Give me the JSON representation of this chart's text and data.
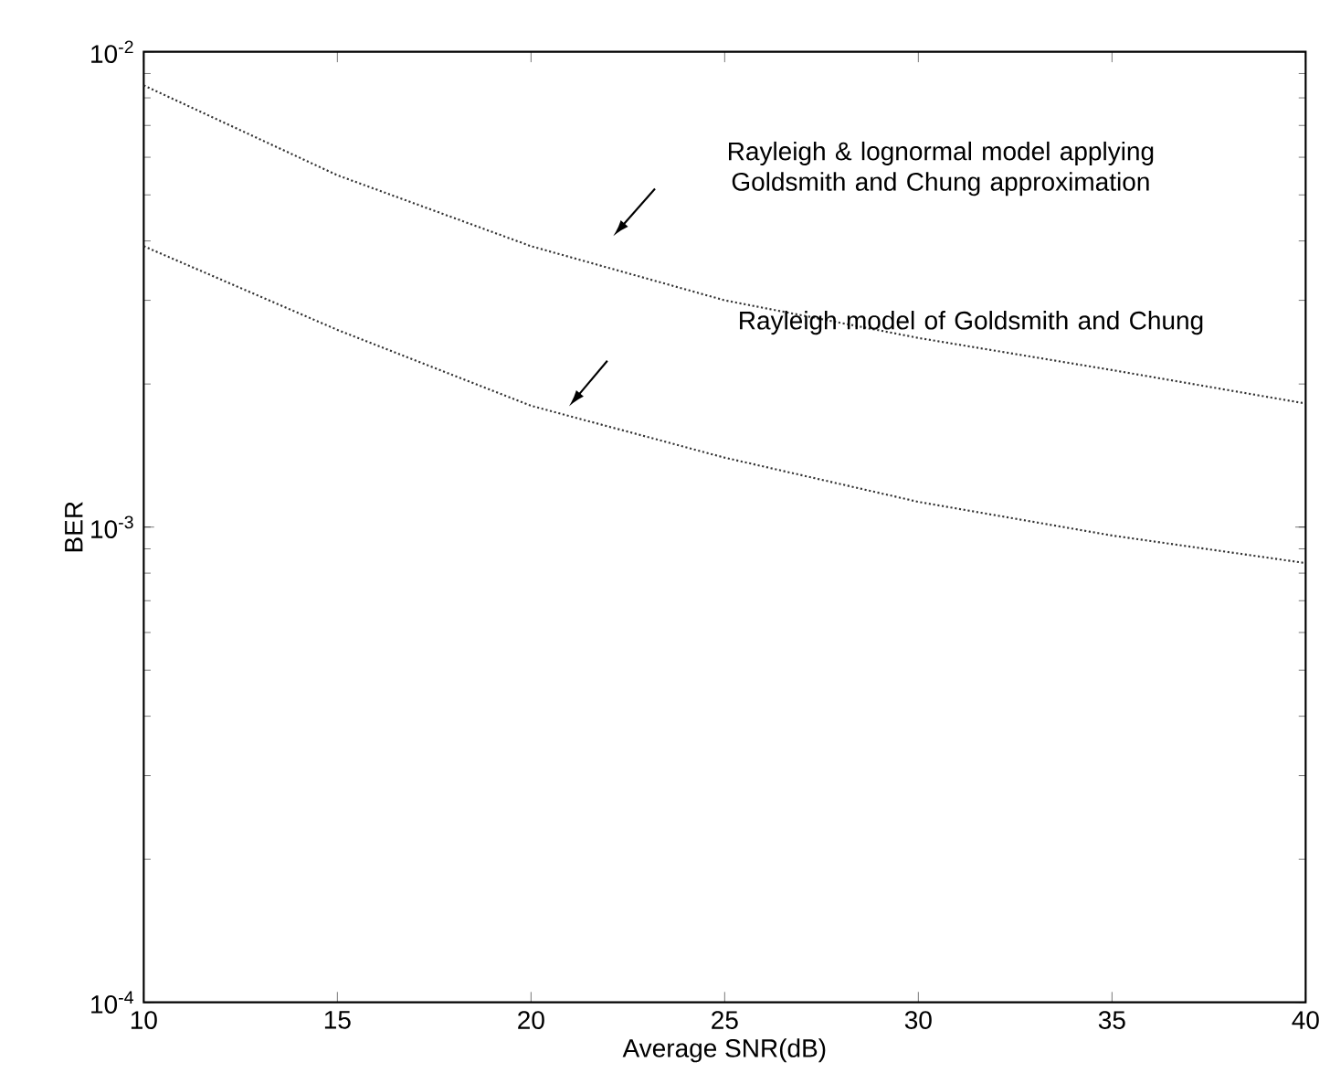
{
  "chart_data": {
    "type": "line",
    "xlabel": "Average SNR(dB)",
    "ylabel": "BER",
    "log": "y",
    "grid": false,
    "marker": "none",
    "line_style": "dotted",
    "xlim": [
      10,
      40
    ],
    "xticks": [
      10,
      15,
      20,
      25,
      30,
      35,
      40
    ],
    "ylim": [
      0.0001,
      0.01
    ],
    "yticks": [
      {
        "value": 0.0001,
        "label": "10$^{-4}$"
      },
      {
        "value": 0.001,
        "label": "10$^{-3}$"
      },
      {
        "value": 0.01,
        "label": "10$^{-2}$"
      }
    ],
    "x": [
      10,
      15,
      20,
      25,
      30,
      35,
      40
    ],
    "series": [
      {
        "color": "#333333",
        "values": [
          0.0085,
          0.0055,
          0.0039,
          0.003,
          0.0025,
          0.00214,
          0.00182
        ]
      },
      {
        "color": "#333333",
        "values": [
          0.0039,
          0.0026,
          0.0018,
          0.0014,
          0.00113,
          0.00096,
          0.00084
        ]
      }
    ],
    "annotations": [
      "Rayleigh & lognormal model applying Goldsmith and Chung approximation",
      "Rayleigh model of Goldsmith and Chung"
    ]
  }
}
